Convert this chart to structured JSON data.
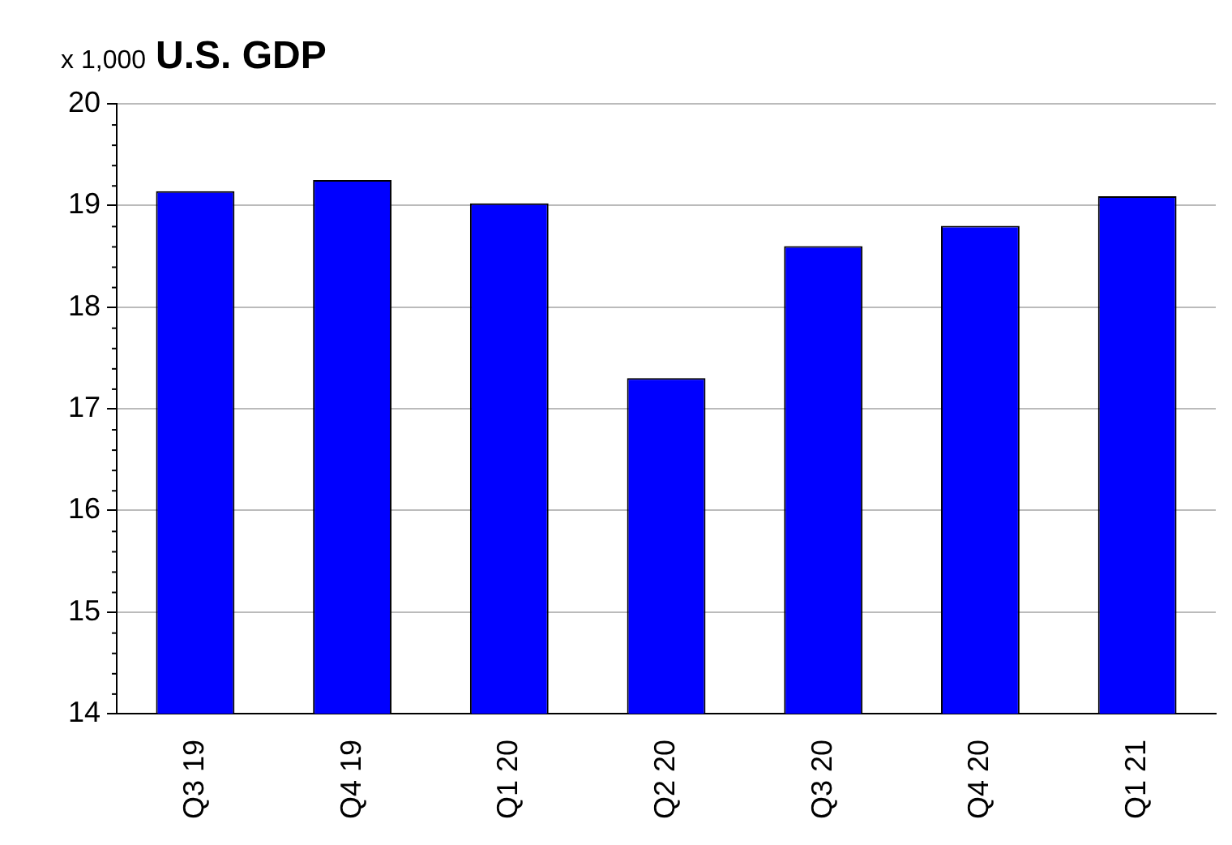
{
  "chart_data": {
    "type": "bar",
    "title": "U.S. GDP",
    "ylabel": "x 1,000",
    "categories": [
      "Q3 19",
      "Q4 19",
      "Q1 20",
      "Q2 20",
      "Q3 20",
      "Q4 20",
      "Q1 21"
    ],
    "values": [
      19.14,
      19.25,
      19.02,
      17.3,
      18.6,
      18.8,
      19.09
    ],
    "color": "#0000ff",
    "ylim": [
      14,
      20
    ],
    "yticks": [
      14,
      15,
      16,
      17,
      18,
      19,
      20
    ],
    "grid": "y",
    "legend": false
  }
}
